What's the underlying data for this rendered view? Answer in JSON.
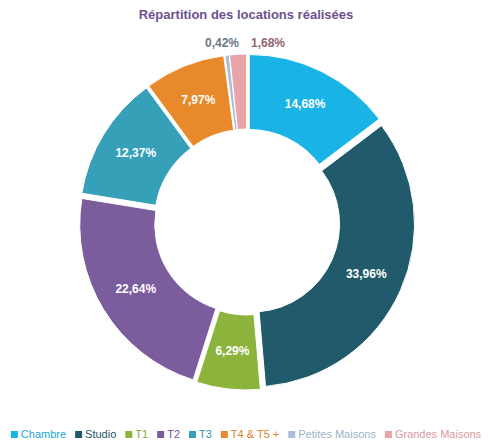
{
  "chart_data": {
    "type": "pie",
    "title": "Répartition des locations réalisées",
    "categories": [
      "Chambre",
      "Studio",
      "T1",
      "T2",
      "T3",
      "T4 & T5 +",
      "Petites Maisons",
      "Grandes Maisons"
    ],
    "values": [
      14.68,
      33.96,
      6.29,
      22.64,
      12.37,
      7.97,
      0.42,
      1.68
    ],
    "value_labels": [
      "14,68%",
      "33,96%",
      "6,29%",
      "22,64%",
      "12,37%",
      "7,97%",
      "0,42%",
      "1,68%"
    ],
    "colors": [
      "#1ab3e6",
      "#215a6a",
      "#8cb33c",
      "#7b5c9c",
      "#36a0b9",
      "#e8892c",
      "#a9bfd8",
      "#e7a4a9"
    ],
    "data_labels": true,
    "legend": "bottom"
  }
}
